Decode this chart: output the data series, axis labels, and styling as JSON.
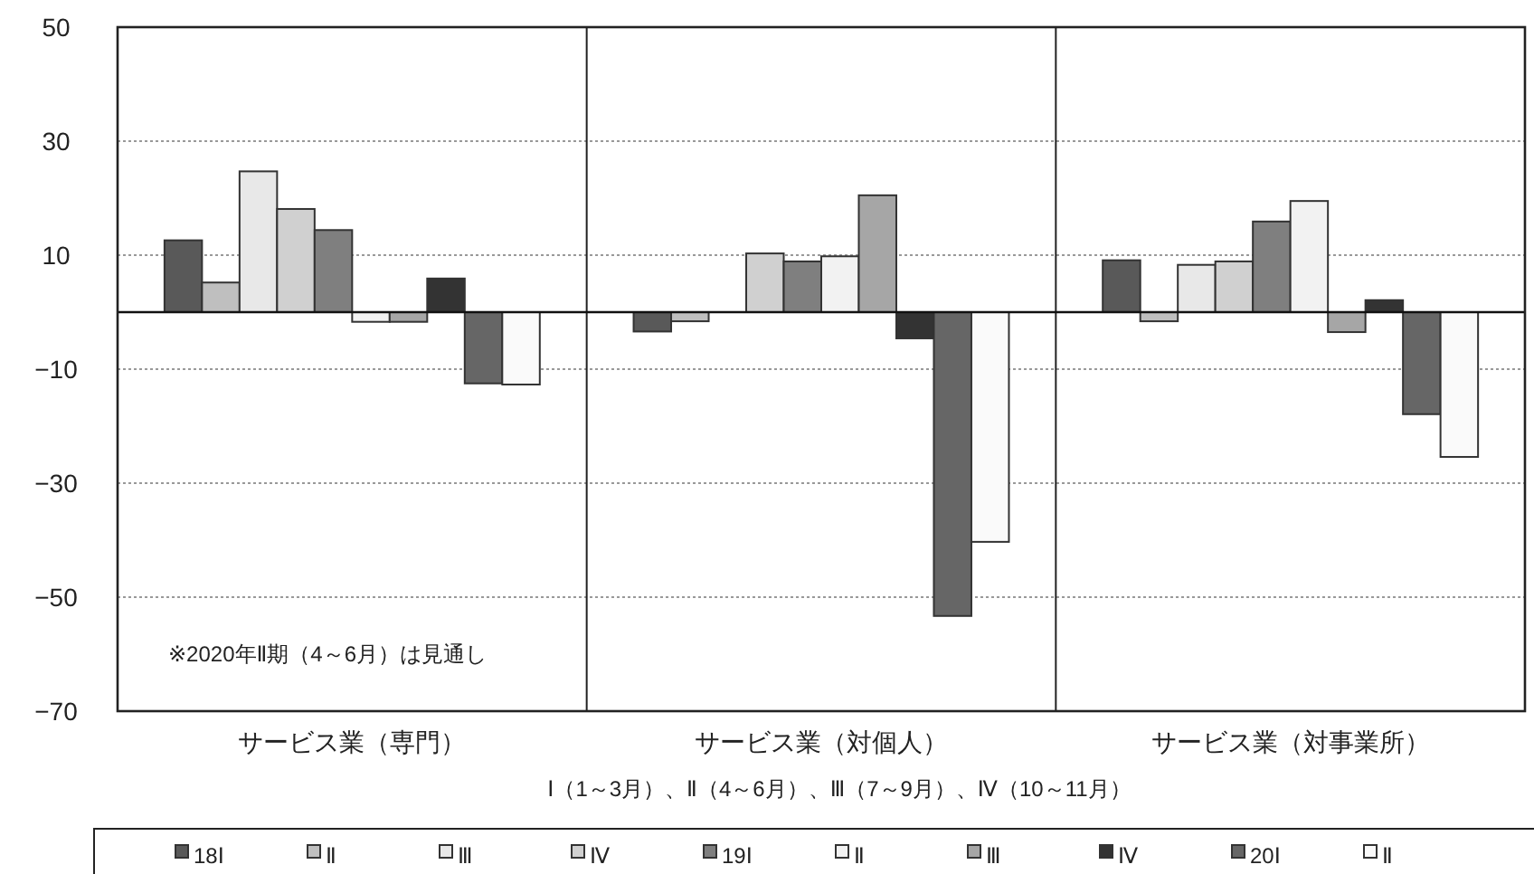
{
  "chart_data": {
    "type": "bar",
    "categories": [
      "サービス業（専門）",
      "サービス業（対個人）",
      "サービス業（対事業所）"
    ],
    "xlabel": "Ⅰ（1～3月）、Ⅱ（4～6月）、Ⅲ（7～9月）、Ⅳ（10～11月）",
    "annotations": [
      "※2020年Ⅱ期（4～6月）は見通し"
    ],
    "ylim": [
      -70,
      50
    ],
    "yticks": [
      -70,
      -50,
      -30,
      -10,
      10,
      30,
      50
    ],
    "grid": "y",
    "legend": "bottom",
    "series": [
      {
        "name": "18Ⅰ",
        "color": "#595959",
        "values": [
          12.6,
          -3.4,
          9.1
        ]
      },
      {
        "name": "Ⅱ",
        "color": "#bfbfbf",
        "values": [
          5.2,
          -1.6,
          -1.6
        ]
      },
      {
        "name": "Ⅲ",
        "color": "#e8e8e8",
        "values": [
          24.7,
          0,
          8.3
        ]
      },
      {
        "name": "Ⅳ",
        "color": "#d0d0d0",
        "values": [
          18.1,
          10.3,
          8.9
        ]
      },
      {
        "name": "19Ⅰ",
        "color": "#7f7f7f",
        "values": [
          14.4,
          8.9,
          15.9
        ]
      },
      {
        "name": "Ⅱ",
        "color": "#f2f2f2",
        "values": [
          -1.7,
          9.8,
          19.5
        ]
      },
      {
        "name": "Ⅲ",
        "color": "#a6a6a6",
        "values": [
          -1.7,
          20.5,
          -3.5
        ]
      },
      {
        "name": "Ⅳ",
        "color": "#333333",
        "values": [
          5.9,
          -4.6,
          2.1
        ]
      },
      {
        "name": "20Ⅰ",
        "color": "#666666",
        "values": [
          -12.5,
          -53.3,
          -17.9
        ]
      },
      {
        "name": "Ⅱ",
        "color": "#fafafa",
        "values": [
          -12.7,
          -40.3,
          -25.4
        ]
      }
    ]
  }
}
